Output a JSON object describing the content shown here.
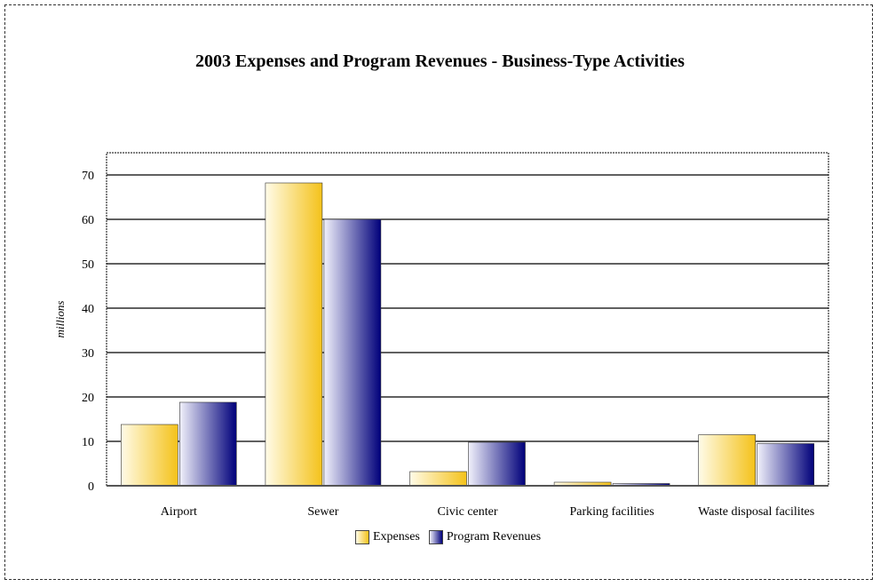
{
  "chart_data": {
    "type": "bar",
    "title": "2003 Expenses and Program Revenues - Business-Type Activities",
    "ylabel": "millions",
    "xlabel": "",
    "categories": [
      "Airport",
      "Sewer",
      "Civic center",
      "Parking facilities",
      "Waste disposal facilites"
    ],
    "series": [
      {
        "name": "Expenses",
        "values": [
          13.8,
          68.2,
          3.2,
          0.8,
          11.5
        ],
        "color": "#f7c52a"
      },
      {
        "name": "Program Revenues",
        "values": [
          18.8,
          60.0,
          9.8,
          0.5,
          9.5
        ],
        "color": "#0a0a7a"
      }
    ],
    "ylim": [
      0,
      75
    ],
    "yticks": [
      0,
      10,
      20,
      30,
      40,
      50,
      60,
      70
    ],
    "grid": true,
    "legend": "bottom"
  }
}
